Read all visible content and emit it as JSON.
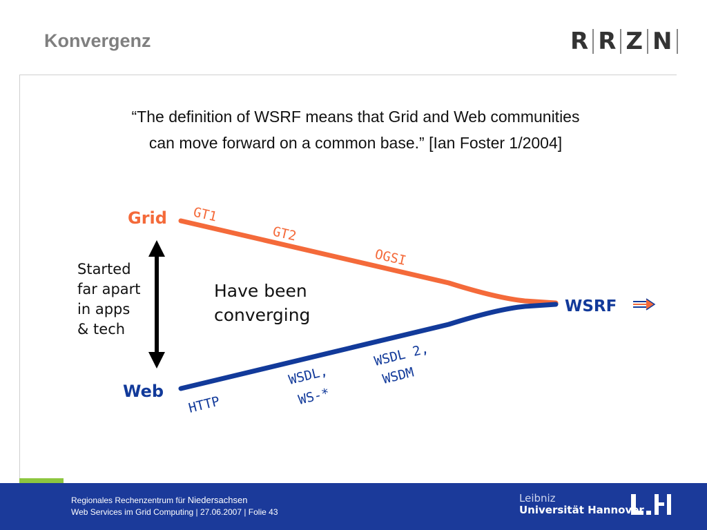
{
  "slide": {
    "title": "Konvergenz",
    "logo_letters": [
      "R",
      "R",
      "Z",
      "N"
    ],
    "quote_line1": "“The definition of WSRF means that Grid and Web communities",
    "quote_line2": "can move forward on a common base.” [Ian Foster 1/2004]"
  },
  "diagram": {
    "grid_label": "Grid",
    "web_label": "Web",
    "wsrf_label": "WSRF",
    "left_text": [
      "Started",
      "far apart",
      "in apps",
      "& tech"
    ],
    "center_text": [
      "Have been",
      "converging"
    ],
    "grid_steps": [
      "GT1",
      "GT2",
      "OGSI"
    ],
    "web_steps": {
      "http": "HTTP",
      "wsdl_line1": "WSDL,",
      "wsdl_line2": "WS-*",
      "wsdl2_line1": "WSDL 2,",
      "wsdl2_line2": "WSDM"
    },
    "colors": {
      "grid": "#f46a3a",
      "web": "#123a9a",
      "arrow": "#000000"
    }
  },
  "footer": {
    "line1_prefix": "Regionales Rechenzentrum für ",
    "line1_suffix": "Niedersachsen",
    "line2": "Web Services im Grid Computing | 27.06.2007 | Folie 43",
    "uni_line1": "Leibniz",
    "uni_line2": "Universität Hannover"
  }
}
